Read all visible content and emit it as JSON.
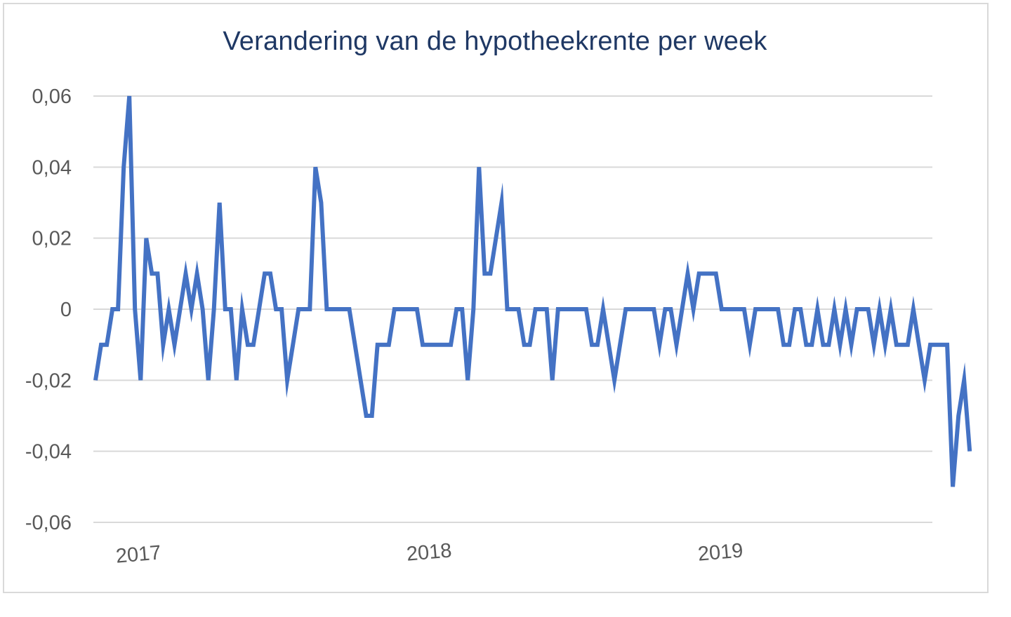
{
  "chart_data": {
    "type": "line",
    "title": "Verandering van de hypotheekrente per week",
    "xlabel": "",
    "ylabel": "",
    "ylim": [
      -0.06,
      0.06
    ],
    "yticks": [
      0.06,
      0.04,
      0.02,
      0,
      -0.02,
      -0.04,
      -0.06
    ],
    "ytick_labels": [
      "0,06",
      "0,04",
      "0,02",
      "0",
      "-0,02",
      "-0,04",
      "-0,06"
    ],
    "xtick_labels": [
      "2017",
      "2018",
      "2019"
    ],
    "x_range_weeks": [
      0,
      148
    ],
    "grid": true,
    "legend": "none",
    "color": "#4472c4",
    "series": [
      {
        "values": [
          -0.02,
          -0.01,
          -0.01,
          0,
          0,
          0.04,
          0.06,
          0,
          -0.02,
          0.02,
          0.01,
          0.01,
          -0.01,
          0,
          -0.01,
          0,
          0.01,
          0,
          0.01,
          0,
          -0.02,
          0,
          0.03,
          0,
          0,
          -0.02,
          0,
          -0.01,
          -0.01,
          0,
          0.01,
          0.01,
          0,
          0,
          -0.02,
          -0.01,
          0,
          0,
          0,
          0.04,
          0.03,
          0,
          0,
          0,
          0,
          0,
          -0.01,
          -0.02,
          -0.03,
          -0.03,
          -0.01,
          -0.01,
          -0.01,
          0,
          0,
          0,
          0,
          0,
          -0.01,
          -0.01,
          -0.01,
          -0.01,
          -0.01,
          -0.01,
          0,
          0,
          -0.02,
          0,
          0.04,
          0.01,
          0.01,
          0.02,
          0.03,
          0,
          0,
          0,
          -0.01,
          -0.01,
          0,
          0,
          0,
          -0.02,
          0,
          0,
          0,
          0,
          0,
          0,
          -0.01,
          -0.01,
          0,
          -0.01,
          -0.02,
          -0.01,
          0,
          0,
          0,
          0,
          0,
          0,
          -0.01,
          0,
          0,
          -0.01,
          0,
          0.01,
          0,
          0.01,
          0.01,
          0.01,
          0.01,
          0,
          0,
          0,
          0,
          0,
          -0.01,
          0,
          0,
          0,
          0,
          0,
          -0.01,
          -0.01,
          0,
          0,
          -0.01,
          -0.01,
          0,
          -0.01,
          -0.01,
          0,
          -0.01,
          0,
          -0.01,
          0,
          0,
          0,
          -0.01,
          0,
          -0.01,
          0,
          -0.01,
          -0.01,
          -0.01,
          0,
          -0.01,
          -0.02,
          -0.01,
          -0.01,
          -0.01,
          -0.01,
          -0.05,
          -0.03,
          -0.02,
          -0.04
        ]
      }
    ]
  }
}
